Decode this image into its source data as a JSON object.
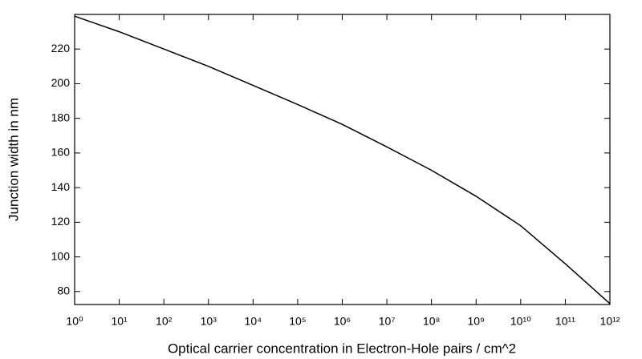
{
  "chart_data": {
    "type": "line",
    "x_label": "Optical carrier concentration in Electron-Hole pairs / cm^2",
    "y_label": "Junction width in nm",
    "x": [
      1,
      10,
      100,
      1000,
      10000,
      100000,
      1000000,
      10000000,
      100000000,
      1000000000,
      10000000000,
      100000000000,
      1000000000000
    ],
    "series": [
      {
        "color": "#000000",
        "values": [
          239,
          230,
          220,
          210,
          199,
          188,
          176.5,
          163.5,
          150,
          135,
          118,
          96,
          73
        ]
      }
    ],
    "xscale": "log",
    "xlim": [
      1,
      1000000000000
    ],
    "xticks": [
      {
        "value": 1,
        "label": "10⁰"
      },
      {
        "value": 10,
        "label": "10¹"
      },
      {
        "value": 100,
        "label": "10²"
      },
      {
        "value": 1000,
        "label": "10³"
      },
      {
        "value": 10000,
        "label": "10⁴"
      },
      {
        "value": 100000,
        "label": "10⁵"
      },
      {
        "value": 1000000,
        "label": "10⁶"
      },
      {
        "value": 10000000,
        "label": "10⁷"
      },
      {
        "value": 100000000,
        "label": "10⁸"
      },
      {
        "value": 1000000000,
        "label": "10⁹"
      },
      {
        "value": 10000000000,
        "label": "10¹⁰"
      },
      {
        "value": 100000000000,
        "label": "10¹¹"
      },
      {
        "value": 1000000000000,
        "label": "10¹²"
      }
    ],
    "ylim": [
      72.5,
      240
    ],
    "yticks": [
      80,
      100,
      120,
      140,
      160,
      180,
      200,
      220
    ],
    "grid": false
  }
}
